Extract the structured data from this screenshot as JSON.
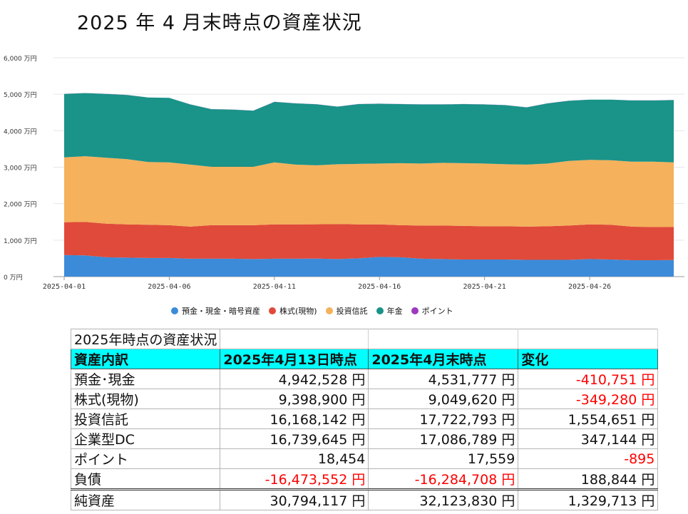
{
  "title": "2025 年 4 月末時点の資産状況",
  "colors": {
    "deposit": "#3c8bd9",
    "stock": "#e04a3a",
    "fund": "#f5b15c",
    "pension": "#1a9389",
    "point": "#9c39c0"
  },
  "chart_data": {
    "type": "area",
    "stacked": true,
    "y_unit": "万円",
    "ylim": [
      0,
      6000
    ],
    "yticks": [
      "0 万円",
      "1,000 万円",
      "2,000 万円",
      "3,000 万円",
      "4,000 万円",
      "5,000 万円",
      "6,000 万円"
    ],
    "xticks": [
      "2025-04-01",
      "2025-04-06",
      "2025-04-11",
      "2025-04-16",
      "2025-04-21",
      "2025-04-26"
    ],
    "x": [
      "2025-04-01",
      "2025-04-02",
      "2025-04-03",
      "2025-04-04",
      "2025-04-05",
      "2025-04-06",
      "2025-04-07",
      "2025-04-08",
      "2025-04-09",
      "2025-04-10",
      "2025-04-11",
      "2025-04-12",
      "2025-04-13",
      "2025-04-14",
      "2025-04-15",
      "2025-04-16",
      "2025-04-17",
      "2025-04-18",
      "2025-04-19",
      "2025-04-20",
      "2025-04-21",
      "2025-04-22",
      "2025-04-23",
      "2025-04-24",
      "2025-04-25",
      "2025-04-26",
      "2025-04-27",
      "2025-04-28",
      "2025-04-29",
      "2025-04-30"
    ],
    "grid": true,
    "legend_position": "bottom",
    "series": [
      {
        "name": "預金・現金・暗号資産",
        "color_key": "deposit",
        "values": [
          590,
          580,
          530,
          520,
          510,
          510,
          490,
          490,
          490,
          480,
          490,
          490,
          494,
          480,
          500,
          540,
          530,
          490,
          480,
          470,
          470,
          470,
          460,
          460,
          460,
          480,
          470,
          450,
          450,
          453
        ]
      },
      {
        "name": "株式(現物)",
        "color_key": "stock",
        "values": [
          900,
          920,
          920,
          910,
          910,
          900,
          880,
          920,
          920,
          930,
          940,
          940,
          940,
          960,
          930,
          890,
          880,
          910,
          920,
          920,
          910,
          910,
          910,
          920,
          940,
          950,
          950,
          920,
          910,
          905
        ]
      },
      {
        "name": "投資信託",
        "color_key": "fund",
        "values": [
          1780,
          1800,
          1810,
          1790,
          1720,
          1720,
          1700,
          1600,
          1600,
          1600,
          1700,
          1640,
          1617,
          1640,
          1660,
          1670,
          1700,
          1700,
          1720,
          1720,
          1720,
          1700,
          1700,
          1720,
          1770,
          1770,
          1770,
          1780,
          1790,
          1772
        ]
      },
      {
        "name": "年金",
        "color_key": "pension",
        "values": [
          1740,
          1730,
          1750,
          1760,
          1770,
          1770,
          1650,
          1580,
          1570,
          1540,
          1660,
          1680,
          1674,
          1580,
          1640,
          1640,
          1620,
          1620,
          1600,
          1620,
          1620,
          1620,
          1570,
          1650,
          1650,
          1650,
          1660,
          1680,
          1680,
          1709
        ]
      },
      {
        "name": "ポイント",
        "color_key": "point",
        "values": [
          2,
          2,
          2,
          2,
          2,
          2,
          2,
          2,
          2,
          2,
          2,
          2,
          2,
          2,
          2,
          2,
          2,
          2,
          2,
          2,
          2,
          2,
          2,
          2,
          2,
          2,
          2,
          2,
          2,
          2
        ]
      }
    ]
  },
  "table": {
    "caption": "2025年時点の資産状況",
    "headers": [
      "資産内訳",
      "2025年4月13日時点",
      "2025年4月末時点",
      "変化"
    ],
    "rows": [
      {
        "label": "預金･現金",
        "v1": "4,942,528 円",
        "v2": "4,531,777 円",
        "diff": "-410,751 円",
        "neg1": false,
        "neg2": false,
        "negd": true
      },
      {
        "label": "株式(現物)",
        "v1": "9,398,900 円",
        "v2": "9,049,620 円",
        "diff": "-349,280 円",
        "neg1": false,
        "neg2": false,
        "negd": true
      },
      {
        "label": "投資信託",
        "v1": "16,168,142 円",
        "v2": "17,722,793 円",
        "diff": "1,554,651 円",
        "neg1": false,
        "neg2": false,
        "negd": false
      },
      {
        "label": "企業型DC",
        "v1": "16,739,645 円",
        "v2": "17,086,789 円",
        "diff": "347,144 円",
        "neg1": false,
        "neg2": false,
        "negd": false
      },
      {
        "label": "ポイント",
        "v1": "18,454",
        "v2": "17,559",
        "diff": "-895",
        "neg1": false,
        "neg2": false,
        "negd": true
      },
      {
        "label": "負債",
        "v1": "-16,473,552 円",
        "v2": "-16,284,708 円",
        "diff": "188,844 円",
        "neg1": true,
        "neg2": true,
        "negd": false
      }
    ],
    "total": {
      "label": "純資産",
      "v1": "30,794,117 円",
      "v2": "32,123,830 円",
      "diff": "1,329,713 円"
    }
  }
}
